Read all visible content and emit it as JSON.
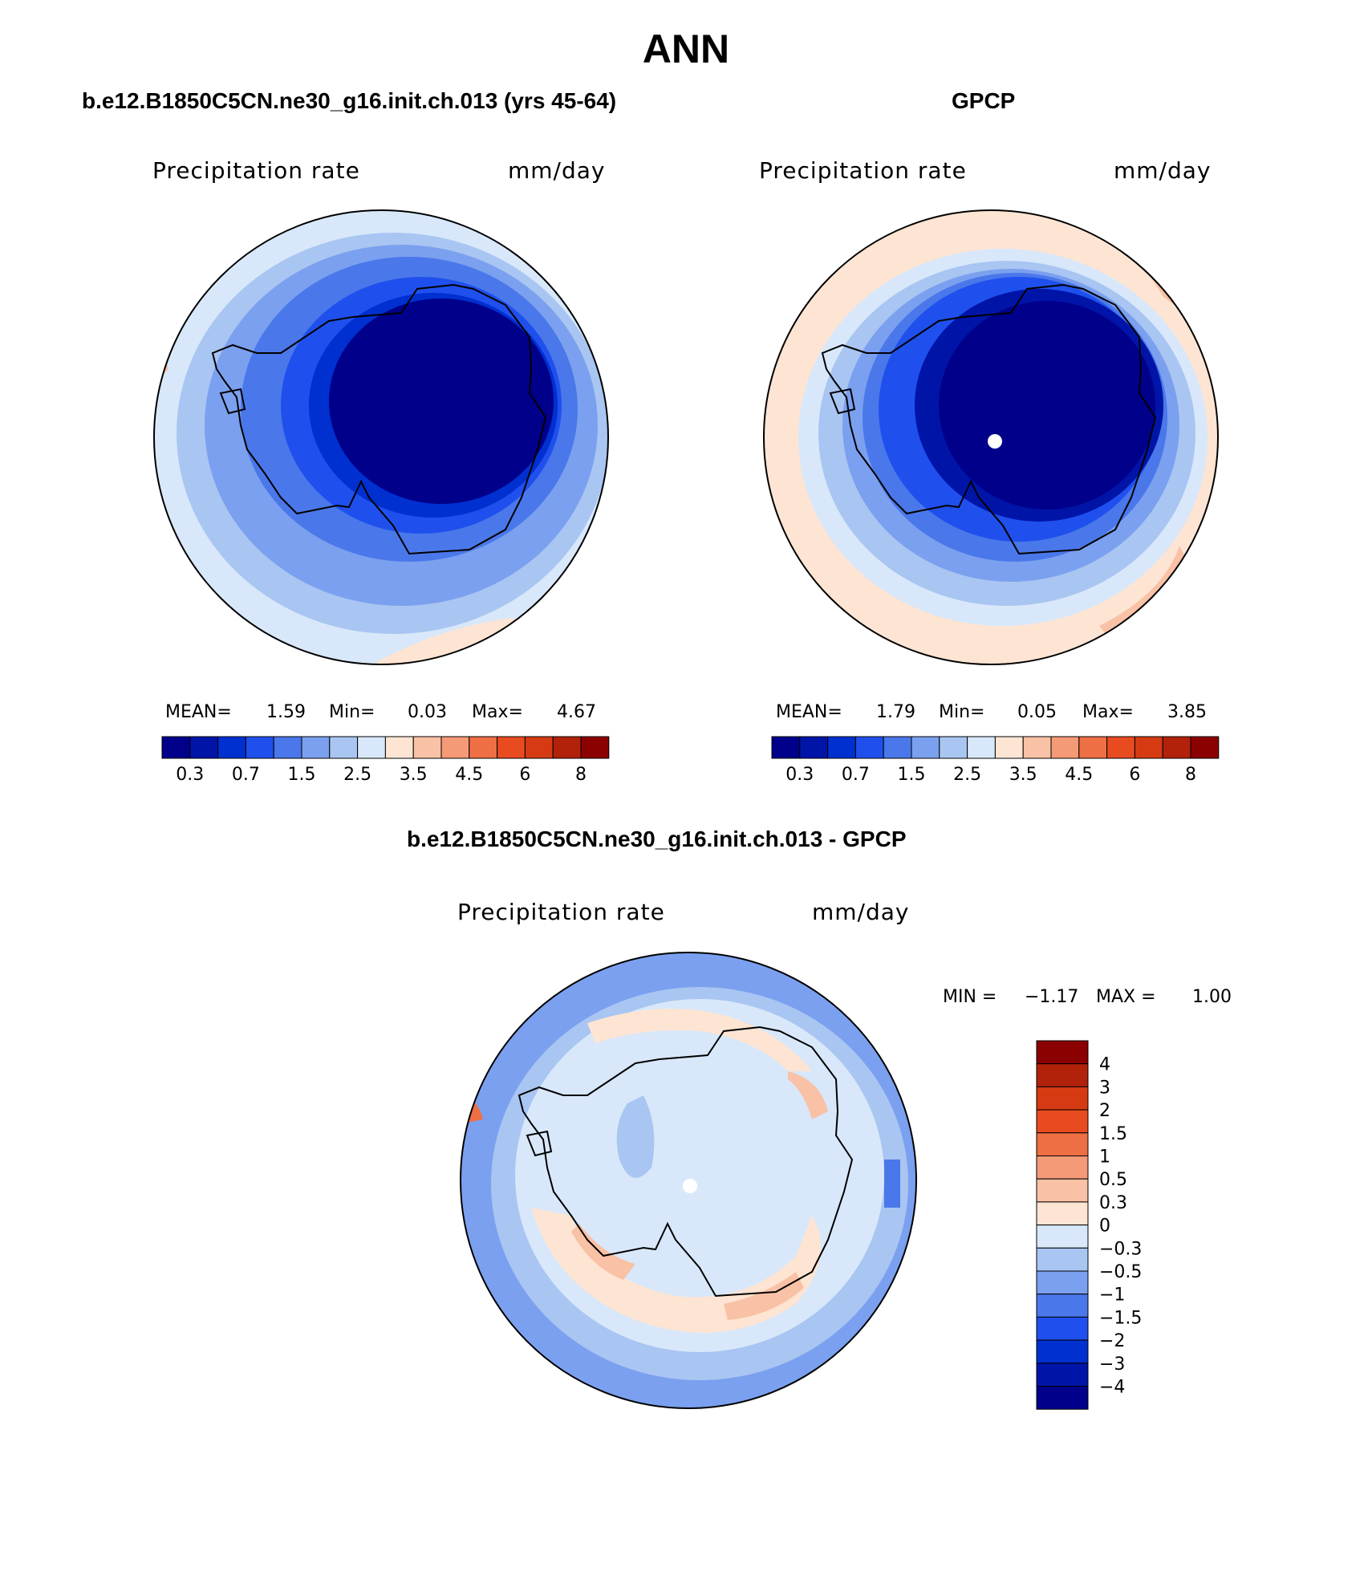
{
  "figure": {
    "title": "ANN",
    "panels": [
      {
        "title": "b.e12.B1850C5CN.ne30_g16.init.ch.013 (yrs 45-64)",
        "variable": "Precipitation rate",
        "units": "mm/day",
        "stats": {
          "mean_label": "MEAN=",
          "mean": "1.59",
          "min_label": "Min=",
          "min": "0.03",
          "max_label": "Max=",
          "max": "4.67"
        }
      },
      {
        "title": "GPCP",
        "variable": "Precipitation rate",
        "units": "mm/day",
        "stats": {
          "mean_label": "MEAN=",
          "mean": "1.79",
          "min_label": "Min=",
          "min": "0.05",
          "max_label": "Max=",
          "max": "3.85"
        }
      },
      {
        "title": "b.e12.B1850C5CN.ne30_g16.init.ch.013 - GPCP",
        "variable": "Precipitation rate",
        "units": "mm/day",
        "stats_text": {
          "min_label": "MIN =",
          "min": "−1.17",
          "max_label": "MAX =",
          "max": "1.00"
        }
      }
    ],
    "colorbar_field": {
      "colors": [
        "#00008b",
        "#0015a8",
        "#0030d0",
        "#1f50ee",
        "#4a78ea",
        "#7ba0ef",
        "#a9c5f2",
        "#d8e8fa",
        "#fde4d3",
        "#f9c1a5",
        "#f49a76",
        "#ef6f45",
        "#e94b20",
        "#d53a12",
        "#b2220a",
        "#8b0000"
      ],
      "labels": [
        "0.3",
        "0.7",
        "1.5",
        "2.5",
        "3.5",
        "4.5",
        "6",
        "8"
      ]
    },
    "colorbar_diff": {
      "colors": [
        "#8b0000",
        "#b2220a",
        "#d53a12",
        "#e94b20",
        "#ef6f45",
        "#f49a76",
        "#f9c1a5",
        "#fde4d3",
        "#d8e8fa",
        "#a9c5f2",
        "#7ba0ef",
        "#4a78ea",
        "#1f50ee",
        "#0030d0",
        "#0015a8",
        "#00008b"
      ],
      "labels": [
        "4",
        "3",
        "2",
        "1.5",
        "1",
        "0.5",
        "0.3",
        "0",
        "−0.3",
        "−0.5",
        "−1",
        "−1.5",
        "−2",
        "−3",
        "−4"
      ]
    }
  }
}
